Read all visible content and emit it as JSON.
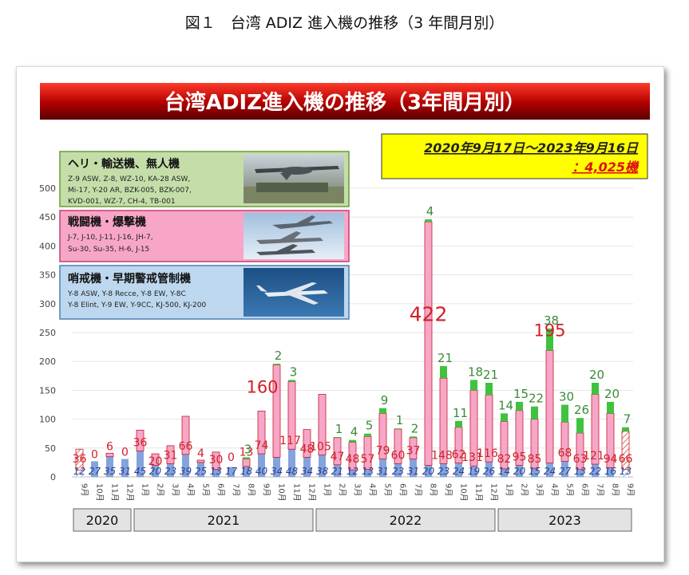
{
  "caption": "図１　台湾 ADIZ 進入機の推移（3 年間月別）",
  "title": "台湾ADIZ進入機の推移（3年間月別）",
  "period": {
    "line1": "2020年9月17日～2023年9月16日",
    "prefix": "：",
    "total": "4,025機"
  },
  "legend": [
    {
      "title": "ヘリ・輸送機、無人機",
      "lines": [
        "Z-9 ASW, Z-8, WZ-10, KA-28 ASW,",
        "Mi-17, Y-20 AR, BZK-005, BZK-007,",
        "KVD-001, WZ-7, CH-4, TB-001"
      ],
      "color": "#c5dea9",
      "border": "#6a9a3a",
      "icon": "drone-photo"
    },
    {
      "title": "戦闘機・爆撃機",
      "lines": [
        "J-7, J-10, J-11, J-16, JH-7,",
        "Su-30, Su-35, H-6, J-15"
      ],
      "color": "#f7a6c8",
      "border": "#c0406d",
      "icon": "fighter-jets-photo"
    },
    {
      "title": "哨戒機・早期警戒管制機",
      "lines": [
        "Y-8 ASW, Y-8 Recce, Y-8 EW, Y-8C",
        "Y-8 Elint, Y-9 EW, Y-9CC, KJ-500, KJ-200"
      ],
      "color": "#bdd7ee",
      "border": "#4b7fb4",
      "icon": "patrol-aircraft-photo"
    }
  ],
  "years": [
    "2020",
    "2021",
    "2022",
    "2023"
  ],
  "colors": {
    "banner": "#c00000",
    "fighter": "#f7a6c8",
    "fighter_edge": "#c0202a",
    "patrol": "#6f93d6",
    "heli": "#3fc23f",
    "red_label": "#d0202a",
    "blue_label": "#2a3f8f",
    "green_label": "#3a8a3a"
  },
  "chart_data": {
    "type": "bar",
    "stacked": true,
    "ylim": [
      0,
      500
    ],
    "yticks": [
      0,
      50,
      100,
      150,
      200,
      250,
      300,
      350,
      400,
      450,
      500
    ],
    "grid": true,
    "categories": [
      "9月",
      "10月",
      "11月",
      "12月",
      "1月",
      "2月",
      "3月",
      "4月",
      "5月",
      "6月",
      "7月",
      "8月",
      "9月",
      "10月",
      "11月",
      "12月",
      "1月",
      "2月",
      "3月",
      "4月",
      "5月",
      "6月",
      "7月",
      "8月",
      "9月",
      "10月",
      "11月",
      "12月",
      "1月",
      "2月",
      "3月",
      "4月",
      "5月",
      "6月",
      "7月",
      "8月",
      "9月"
    ],
    "series": [
      {
        "values": [
          12,
          27,
          35,
          31,
          45,
          20,
          23,
          39,
          25,
          13,
          17,
          18,
          40,
          34,
          48,
          34,
          38,
          21,
          12,
          13,
          31,
          23,
          31,
          20,
          23,
          24,
          19,
          26,
          14,
          20,
          15,
          24,
          27,
          13,
          22,
          16,
          13
        ]
      },
      {
        "values": [
          36,
          0,
          6,
          0,
          36,
          20,
          31,
          66,
          4,
          30,
          0,
          13,
          74,
          160,
          117,
          48,
          105,
          47,
          48,
          57,
          79,
          60,
          37,
          422,
          148,
          62,
          131,
          116,
          82,
          95,
          85,
          195,
          68,
          63,
          121,
          94,
          66
        ]
      },
      {
        "values": [
          0,
          0,
          0,
          0,
          0,
          0,
          0,
          0,
          0,
          0,
          0,
          3,
          0,
          2,
          3,
          0,
          0,
          1,
          4,
          5,
          9,
          1,
          2,
          4,
          21,
          11,
          18,
          21,
          14,
          15,
          22,
          38,
          30,
          26,
          20,
          20,
          7
        ]
      }
    ],
    "labels": {
      "patrol": [
        "12",
        "27",
        "35",
        "31",
        "45",
        "20",
        "23",
        "39",
        "25",
        "13",
        "17",
        "18",
        "40",
        "34",
        "48",
        "34",
        "38",
        "21",
        "12",
        "13",
        "31",
        "23",
        "31",
        "20",
        "23",
        "24",
        "19",
        "26",
        "14",
        "20",
        "15",
        "24",
        "27",
        "13",
        "22",
        "16",
        "13"
      ],
      "fighter": [
        "36",
        "0",
        "6",
        "0",
        "36",
        "20",
        "31",
        "66",
        "4",
        "30",
        "0",
        "13",
        "74",
        "160",
        "117",
        "48",
        "105",
        "47",
        "48",
        "57",
        "79",
        "60",
        "37",
        "422",
        "148",
        "62",
        "131",
        "116",
        "82",
        "95",
        "85",
        "195",
        "68",
        "63",
        "121",
        "94",
        "66"
      ],
      "heli": [
        "",
        "",
        "",
        "",
        "",
        "",
        "",
        "",
        "",
        "",
        "",
        "3",
        "",
        "2",
        "3",
        "",
        "",
        "1",
        "4",
        "5",
        "9",
        "1",
        "2",
        "4",
        "21",
        "11",
        "18",
        "21",
        "14",
        "15",
        "22",
        "38",
        "30",
        "26",
        "20",
        "20",
        "7"
      ]
    }
  }
}
